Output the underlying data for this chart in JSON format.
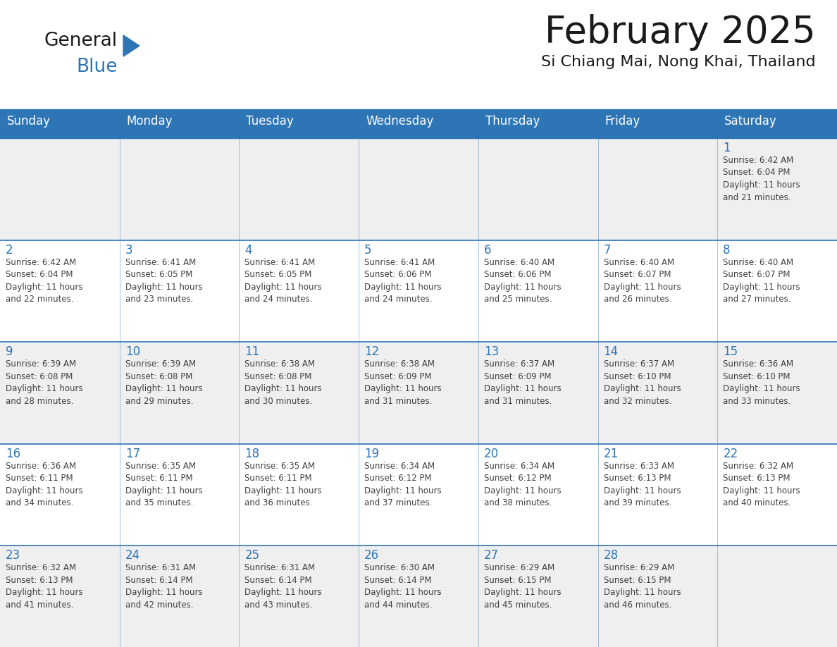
{
  "title": "February 2025",
  "subtitle": "Si Chiang Mai, Nong Khai, Thailand",
  "days_of_week": [
    "Sunday",
    "Monday",
    "Tuesday",
    "Wednesday",
    "Thursday",
    "Friday",
    "Saturday"
  ],
  "header_bg": "#2E75B6",
  "header_text": "#FFFFFF",
  "cell_bg_light": "#EFEFEF",
  "cell_bg_white": "#FFFFFF",
  "border_color": "#2E75B6",
  "day_num_color": "#2E75B6",
  "text_color": "#404040",
  "calendar_data": [
    [
      "",
      "",
      "",
      "",
      "",
      "",
      "1\nSunrise: 6:42 AM\nSunset: 6:04 PM\nDaylight: 11 hours\nand 21 minutes."
    ],
    [
      "2\nSunrise: 6:42 AM\nSunset: 6:04 PM\nDaylight: 11 hours\nand 22 minutes.",
      "3\nSunrise: 6:41 AM\nSunset: 6:05 PM\nDaylight: 11 hours\nand 23 minutes.",
      "4\nSunrise: 6:41 AM\nSunset: 6:05 PM\nDaylight: 11 hours\nand 24 minutes.",
      "5\nSunrise: 6:41 AM\nSunset: 6:06 PM\nDaylight: 11 hours\nand 24 minutes.",
      "6\nSunrise: 6:40 AM\nSunset: 6:06 PM\nDaylight: 11 hours\nand 25 minutes.",
      "7\nSunrise: 6:40 AM\nSunset: 6:07 PM\nDaylight: 11 hours\nand 26 minutes.",
      "8\nSunrise: 6:40 AM\nSunset: 6:07 PM\nDaylight: 11 hours\nand 27 minutes."
    ],
    [
      "9\nSunrise: 6:39 AM\nSunset: 6:08 PM\nDaylight: 11 hours\nand 28 minutes.",
      "10\nSunrise: 6:39 AM\nSunset: 6:08 PM\nDaylight: 11 hours\nand 29 minutes.",
      "11\nSunrise: 6:38 AM\nSunset: 6:08 PM\nDaylight: 11 hours\nand 30 minutes.",
      "12\nSunrise: 6:38 AM\nSunset: 6:09 PM\nDaylight: 11 hours\nand 31 minutes.",
      "13\nSunrise: 6:37 AM\nSunset: 6:09 PM\nDaylight: 11 hours\nand 31 minutes.",
      "14\nSunrise: 6:37 AM\nSunset: 6:10 PM\nDaylight: 11 hours\nand 32 minutes.",
      "15\nSunrise: 6:36 AM\nSunset: 6:10 PM\nDaylight: 11 hours\nand 33 minutes."
    ],
    [
      "16\nSunrise: 6:36 AM\nSunset: 6:11 PM\nDaylight: 11 hours\nand 34 minutes.",
      "17\nSunrise: 6:35 AM\nSunset: 6:11 PM\nDaylight: 11 hours\nand 35 minutes.",
      "18\nSunrise: 6:35 AM\nSunset: 6:11 PM\nDaylight: 11 hours\nand 36 minutes.",
      "19\nSunrise: 6:34 AM\nSunset: 6:12 PM\nDaylight: 11 hours\nand 37 minutes.",
      "20\nSunrise: 6:34 AM\nSunset: 6:12 PM\nDaylight: 11 hours\nand 38 minutes.",
      "21\nSunrise: 6:33 AM\nSunset: 6:13 PM\nDaylight: 11 hours\nand 39 minutes.",
      "22\nSunrise: 6:32 AM\nSunset: 6:13 PM\nDaylight: 11 hours\nand 40 minutes."
    ],
    [
      "23\nSunrise: 6:32 AM\nSunset: 6:13 PM\nDaylight: 11 hours\nand 41 minutes.",
      "24\nSunrise: 6:31 AM\nSunset: 6:14 PM\nDaylight: 11 hours\nand 42 minutes.",
      "25\nSunrise: 6:31 AM\nSunset: 6:14 PM\nDaylight: 11 hours\nand 43 minutes.",
      "26\nSunrise: 6:30 AM\nSunset: 6:14 PM\nDaylight: 11 hours\nand 44 minutes.",
      "27\nSunrise: 6:29 AM\nSunset: 6:15 PM\nDaylight: 11 hours\nand 45 minutes.",
      "28\nSunrise: 6:29 AM\nSunset: 6:15 PM\nDaylight: 11 hours\nand 46 minutes.",
      ""
    ]
  ],
  "logo_text_general": "General",
  "logo_text_blue": "Blue",
  "logo_color_general": "#1a1a1a",
  "logo_color_blue": "#2E75B6",
  "logo_triangle_color": "#2E75B6",
  "fig_width": 11.88,
  "fig_height": 9.18,
  "dpi": 100
}
